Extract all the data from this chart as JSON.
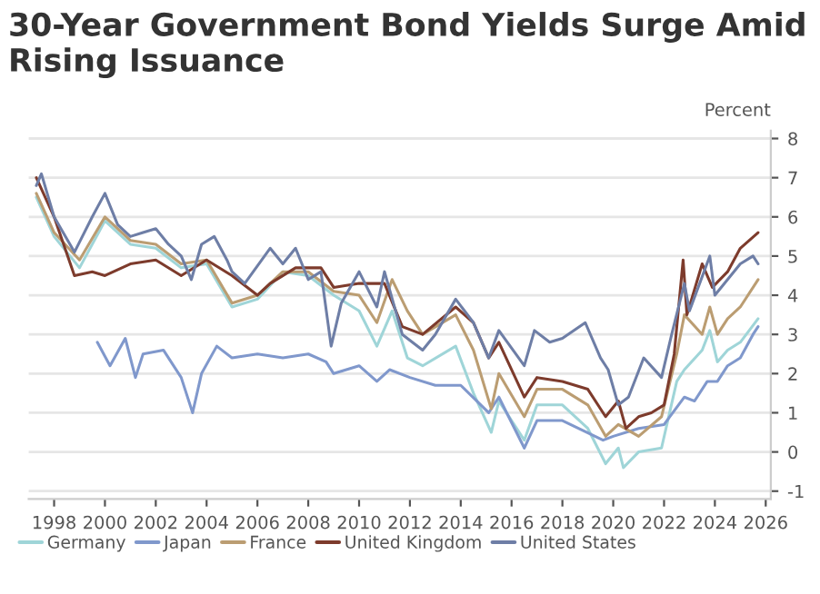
{
  "chart_data": {
    "type": "line",
    "title": "30-Year Government Bond Yields Surge Amid Rising Issuance",
    "ylabel": "Percent",
    "xlim": [
      1997.0,
      2026.2
    ],
    "xticks": [
      1998,
      2000,
      2002,
      2004,
      2006,
      2008,
      2010,
      2012,
      2014,
      2016,
      2018,
      2020,
      2022,
      2024,
      2026
    ],
    "ylim": [
      -1.2,
      8.2
    ],
    "yticks": [
      -1,
      0,
      1,
      2,
      3,
      4,
      5,
      6,
      7,
      8
    ],
    "grid": "y",
    "legend": "bottom left",
    "series": [
      {
        "name": "Germany",
        "color": "#9fd5d8",
        "x": [
          1997.3,
          1998,
          1999,
          2000,
          2001,
          2002,
          2003,
          2004,
          2005,
          2006,
          2007,
          2008,
          2009,
          2010,
          2010.7,
          2011.3,
          2011.9,
          2012.5,
          2013.8,
          2014.5,
          2015.2,
          2015.5,
          2016.5,
          2017,
          2018,
          2019,
          2019.7,
          2020.2,
          2020.4,
          2021,
          2021.9,
          2022.5,
          2022.8,
          2023.5,
          2023.8,
          2024.1,
          2024.5,
          2025.0,
          2025.7
        ],
        "values": [
          6.5,
          5.5,
          4.7,
          5.9,
          5.3,
          5.2,
          4.7,
          4.8,
          3.7,
          3.9,
          4.6,
          4.5,
          4.0,
          3.6,
          2.7,
          3.6,
          2.4,
          2.2,
          2.7,
          1.5,
          0.5,
          1.3,
          0.3,
          1.2,
          1.2,
          0.6,
          -0.3,
          0.1,
          -0.4,
          0.0,
          0.1,
          1.8,
          2.1,
          2.6,
          3.1,
          2.3,
          2.6,
          2.8,
          3.4
        ]
      },
      {
        "name": "Japan",
        "color": "#8098cc",
        "x": [
          1999.7,
          2000.2,
          2000.8,
          2001.2,
          2001.5,
          2002.3,
          2003.0,
          2003.45,
          2003.8,
          2004.4,
          2005,
          2006,
          2007,
          2008,
          2008.7,
          2009,
          2010,
          2010.7,
          2011.2,
          2012,
          2013,
          2014,
          2015.1,
          2015.5,
          2016.5,
          2017,
          2018,
          2019.6,
          2020,
          2021,
          2022,
          2022.8,
          2023.2,
          2023.7,
          2024.1,
          2024.5,
          2025.0,
          2025.5,
          2025.7
        ],
        "values": [
          2.8,
          2.2,
          2.9,
          1.9,
          2.5,
          2.6,
          1.9,
          1.0,
          2.0,
          2.7,
          2.4,
          2.5,
          2.4,
          2.5,
          2.3,
          2.0,
          2.2,
          1.8,
          2.1,
          1.9,
          1.7,
          1.7,
          1.0,
          1.4,
          0.1,
          0.8,
          0.8,
          0.3,
          0.4,
          0.6,
          0.7,
          1.4,
          1.3,
          1.8,
          1.8,
          2.2,
          2.4,
          3.0,
          3.2
        ]
      },
      {
        "name": "France",
        "color": "#bb9d72",
        "x": [
          1997.3,
          1998,
          1999,
          2000,
          2001,
          2002,
          2003,
          2004,
          2005,
          2006,
          2007,
          2008,
          2009,
          2010,
          2010.7,
          2011.3,
          2011.9,
          2012.5,
          2013.8,
          2014.5,
          2015.2,
          2015.5,
          2016.5,
          2017,
          2018,
          2019,
          2019.7,
          2020.2,
          2021,
          2021.9,
          2022.5,
          2022.8,
          2023.5,
          2023.8,
          2024.1,
          2024.5,
          2025.0,
          2025.7
        ],
        "values": [
          6.6,
          5.6,
          4.9,
          6.0,
          5.4,
          5.3,
          4.8,
          4.9,
          3.8,
          4.0,
          4.6,
          4.6,
          4.1,
          4.0,
          3.3,
          4.4,
          3.6,
          3.0,
          3.5,
          2.6,
          1.1,
          2.0,
          0.9,
          1.6,
          1.6,
          1.2,
          0.4,
          0.7,
          0.4,
          0.9,
          2.5,
          3.5,
          3.0,
          3.7,
          3.0,
          3.4,
          3.7,
          4.4
        ]
      },
      {
        "name": "United Kingdom",
        "color": "#7d3b2c",
        "x": [
          1997.3,
          1998,
          1998.8,
          1999.5,
          2000,
          2001,
          2002,
          2003,
          2004,
          2005,
          2006,
          2006.5,
          2007.5,
          2008.5,
          2009,
          2010,
          2011,
          2011.7,
          2012.5,
          2013.8,
          2014.5,
          2015.1,
          2015.5,
          2016.5,
          2017,
          2018,
          2019,
          2019.7,
          2020.2,
          2020.5,
          2021,
          2021.5,
          2022.0,
          2022.4,
          2022.75,
          2022.9,
          2023.5,
          2023.9,
          2024.5,
          2025.0,
          2025.7
        ],
        "values": [
          7.0,
          6.0,
          4.5,
          4.6,
          4.5,
          4.8,
          4.9,
          4.5,
          4.9,
          4.5,
          4.0,
          4.3,
          4.7,
          4.7,
          4.2,
          4.3,
          4.3,
          3.2,
          3.0,
          3.7,
          3.3,
          2.4,
          2.8,
          1.4,
          1.9,
          1.8,
          1.6,
          0.9,
          1.3,
          0.6,
          0.9,
          1.0,
          1.2,
          2.5,
          4.9,
          3.5,
          4.8,
          4.2,
          4.6,
          5.2,
          5.6
        ]
      },
      {
        "name": "United States",
        "color": "#6e7ea6",
        "x": [
          1997.3,
          1997.5,
          1998,
          1998.8,
          1999.5,
          2000.0,
          2000.5,
          2001,
          2001.5,
          2002,
          2002.5,
          2003,
          2003.4,
          2003.8,
          2004.3,
          2004.8,
          2005,
          2005.5,
          2006.5,
          2007,
          2007.5,
          2008,
          2008.5,
          2008.9,
          2009.3,
          2010,
          2010.7,
          2011.0,
          2011.7,
          2012.5,
          2013,
          2013.8,
          2014.5,
          2015.1,
          2015.5,
          2016.5,
          2016.9,
          2017.5,
          2018,
          2018.9,
          2019.5,
          2019.8,
          2020.2,
          2020.6,
          2021.2,
          2021.9,
          2022.3,
          2022.8,
          2023.0,
          2023.8,
          2024.0,
          2024.5,
          2025.0,
          2025.5,
          2025.7
        ],
        "values": [
          6.8,
          7.1,
          6.0,
          5.1,
          6.0,
          6.6,
          5.8,
          5.5,
          5.6,
          5.7,
          5.3,
          5.0,
          4.4,
          5.3,
          5.5,
          4.9,
          4.6,
          4.3,
          5.2,
          4.8,
          5.2,
          4.4,
          4.6,
          2.7,
          3.8,
          4.6,
          3.7,
          4.6,
          3.0,
          2.6,
          3.0,
          3.9,
          3.3,
          2.4,
          3.1,
          2.2,
          3.1,
          2.8,
          2.9,
          3.3,
          2.4,
          2.1,
          1.2,
          1.4,
          2.4,
          1.9,
          3.0,
          4.3,
          3.6,
          5.0,
          4.0,
          4.4,
          4.8,
          5.0,
          4.8
        ]
      }
    ]
  }
}
